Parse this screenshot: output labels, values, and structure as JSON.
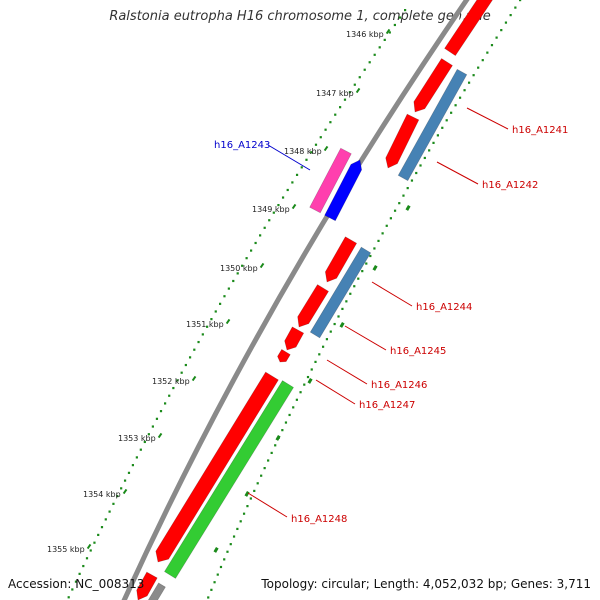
{
  "title": "Ralstonia eutropha H16 chromosome 1, complete genome",
  "footer": {
    "accession": "Accession: NC_008313",
    "topology": "Topology: circular; Length: 4,052,032 bp; Genes: 3,711"
  },
  "colors": {
    "backbone": "#8a8a8a",
    "ticks": "#1a8a1a",
    "red": "#ff0000",
    "steelblue": "#4682b4",
    "magenta": "#ff3fae",
    "blue": "#0000ff",
    "green": "#33cc33",
    "label_red": "#cc0000",
    "label_blue": "#0000cc"
  },
  "scale_ticks": [
    "1346 kbp",
    "1347 kbp",
    "1348 kbp",
    "1349 kbp",
    "1350 kbp",
    "1351 kbp",
    "1352 kbp",
    "1353 kbp",
    "1354 kbp",
    "1355 kbp"
  ],
  "gene_labels": [
    {
      "text": "h16_A1241",
      "color": "label_red"
    },
    {
      "text": "h16_A1242",
      "color": "label_red"
    },
    {
      "text": "h16_A1243",
      "color": "label_blue"
    },
    {
      "text": "h16_A1244",
      "color": "label_red"
    },
    {
      "text": "h16_A1245",
      "color": "label_red"
    },
    {
      "text": "h16_A1246",
      "color": "label_red"
    },
    {
      "text": "h16_A1247",
      "color": "label_red"
    },
    {
      "text": "h16_A1248",
      "color": "label_red"
    }
  ]
}
